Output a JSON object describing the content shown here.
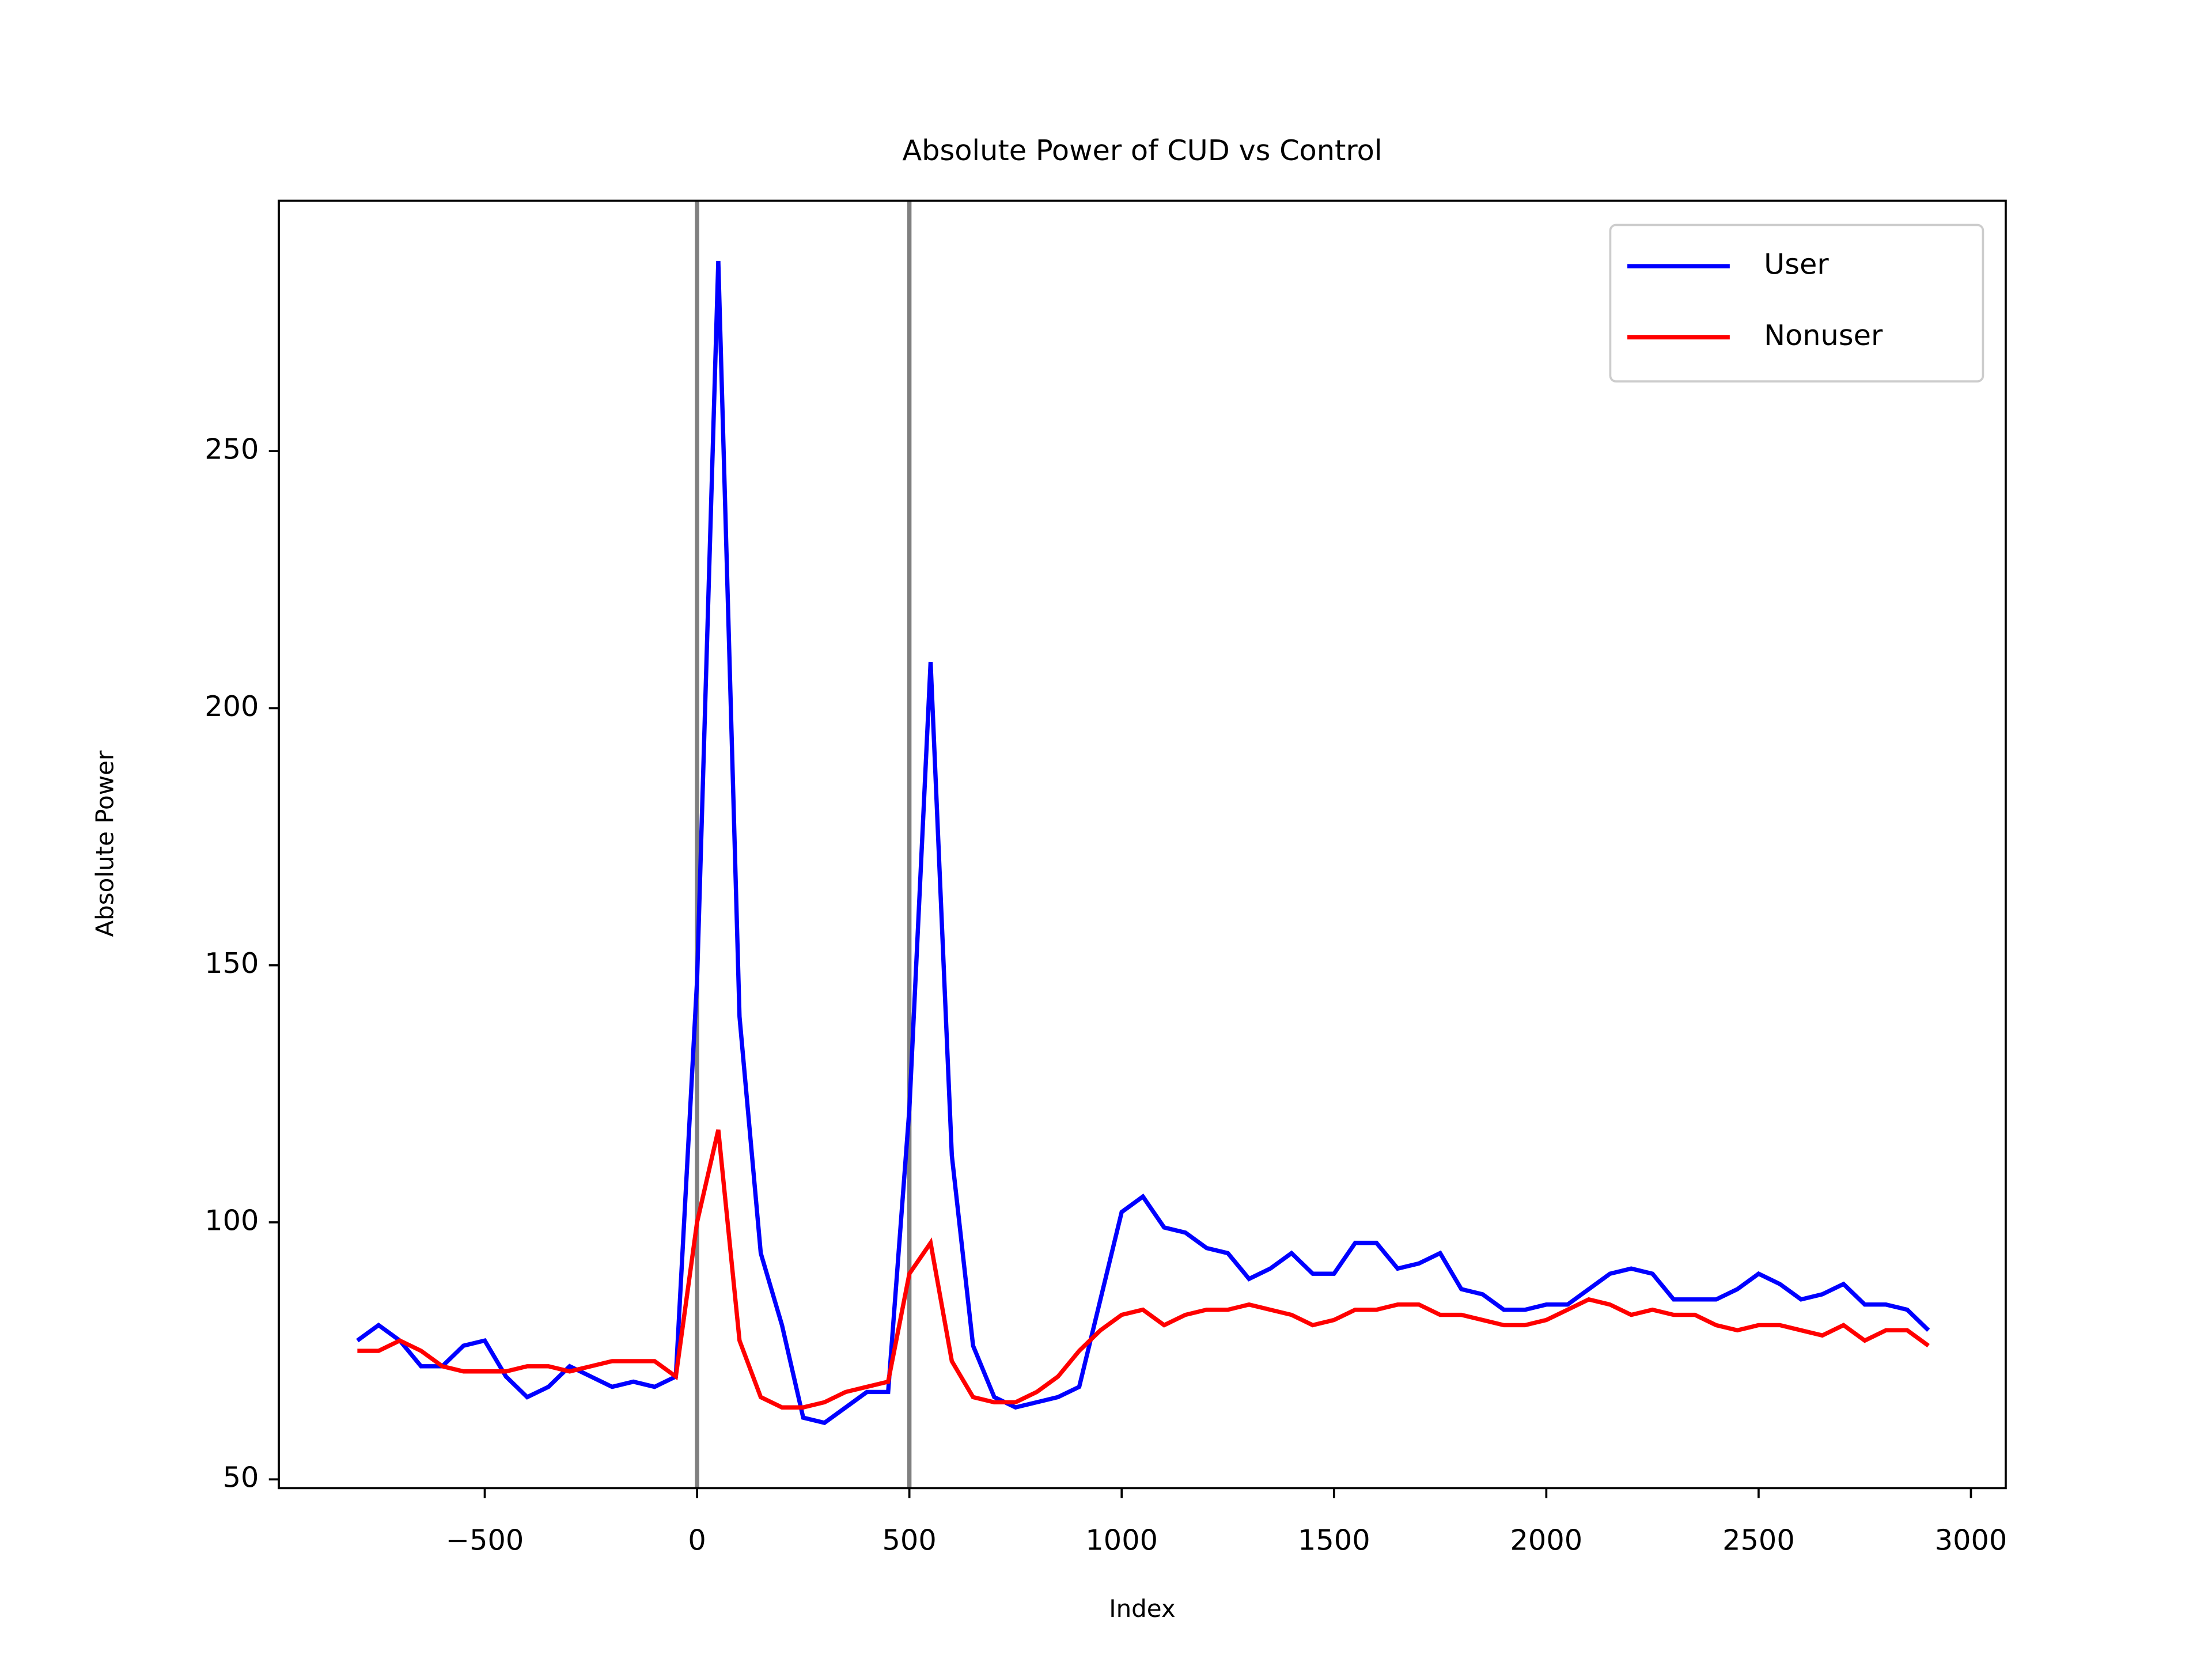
{
  "chart_data": {
    "type": "line",
    "title": "Absolute Power of CUD vs Control",
    "x_label": "Index",
    "y_label": "Absolute Power",
    "x": [
      -800,
      -750,
      -700,
      -650,
      -600,
      -550,
      -500,
      -450,
      -400,
      -350,
      -300,
      -250,
      -200,
      -150,
      -100,
      -50,
      0,
      50,
      100,
      150,
      200,
      250,
      300,
      350,
      400,
      450,
      500,
      550,
      600,
      650,
      700,
      750,
      800,
      850,
      900,
      950,
      1000,
      1050,
      1100,
      1150,
      1200,
      1250,
      1300,
      1350,
      1400,
      1450,
      1500,
      1550,
      1600,
      1650,
      1700,
      1750,
      1800,
      1850,
      1900,
      1950,
      2000,
      2050,
      2100,
      2150,
      2200,
      2250,
      2300,
      2350,
      2400,
      2450,
      2500,
      2550,
      2600,
      2650,
      2700,
      2750,
      2800,
      2850,
      2900
    ],
    "series": [
      {
        "name": "User",
        "color": "#0000ff",
        "values": [
          77,
          80,
          77,
          72,
          72,
          76,
          77,
          70,
          66,
          68,
          72,
          70,
          68,
          69,
          68,
          70,
          147,
          287,
          140,
          94,
          80,
          62,
          61,
          64,
          67,
          67,
          122,
          209,
          113,
          76,
          66,
          64,
          65,
          66,
          68,
          85,
          102,
          105,
          99,
          98,
          95,
          94,
          89,
          91,
          94,
          90,
          90,
          96,
          96,
          91,
          92,
          94,
          87,
          86,
          83,
          83,
          84,
          84,
          87,
          90,
          91,
          90,
          85,
          85,
          85,
          87,
          90,
          88,
          85,
          86,
          88,
          84,
          84,
          83,
          79
        ]
      },
      {
        "name": "Nonuser",
        "color": "#ff0000",
        "values": [
          75,
          75,
          77,
          75,
          72,
          71,
          71,
          71,
          72,
          72,
          71,
          72,
          73,
          73,
          73,
          70,
          100,
          118,
          77,
          66,
          64,
          64,
          65,
          67,
          68,
          69,
          90,
          96,
          73,
          66,
          65,
          65,
          67,
          70,
          75,
          79,
          82,
          83,
          80,
          82,
          83,
          83,
          84,
          83,
          82,
          80,
          81,
          83,
          83,
          84,
          84,
          82,
          82,
          81,
          80,
          80,
          81,
          83,
          85,
          84,
          82,
          83,
          82,
          82,
          80,
          79,
          80,
          80,
          79,
          78,
          80,
          77,
          79,
          79,
          76
        ]
      }
    ],
    "vlines": [
      0,
      500
    ],
    "vline_color": "#808080",
    "xlim": [
      -985,
      3082
    ],
    "ylim": [
      48.3,
      298.7
    ],
    "xticks": [
      {
        "value": -500,
        "label": "−500"
      },
      0,
      500,
      1000,
      1500,
      2000,
      2500,
      3000
    ],
    "yticks": [
      50,
      100,
      150,
      200,
      250
    ],
    "legend": "upper right"
  }
}
